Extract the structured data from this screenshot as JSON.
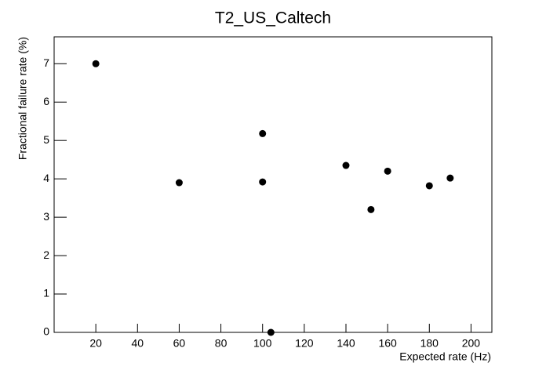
{
  "chart_data": {
    "type": "scatter",
    "title": "T2_US_Caltech",
    "x_label": "Expected rate (Hz)",
    "y_label": "Fractional failure rate (%)",
    "x": [
      20,
      60,
      100,
      100,
      104,
      140,
      152,
      160,
      180,
      190
    ],
    "values": [
      7.0,
      3.9,
      5.18,
      3.92,
      0,
      4.35,
      3.2,
      4.2,
      3.82,
      4.02
    ],
    "color": "#000000",
    "xlim": [
      0,
      210
    ],
    "xticks": [
      20,
      40,
      60,
      80,
      100,
      120,
      140,
      160,
      180,
      200
    ],
    "ylim": [
      0,
      7.7
    ],
    "yticks": [
      0,
      1,
      2,
      3,
      4,
      5,
      6,
      7
    ],
    "grid": false
  }
}
